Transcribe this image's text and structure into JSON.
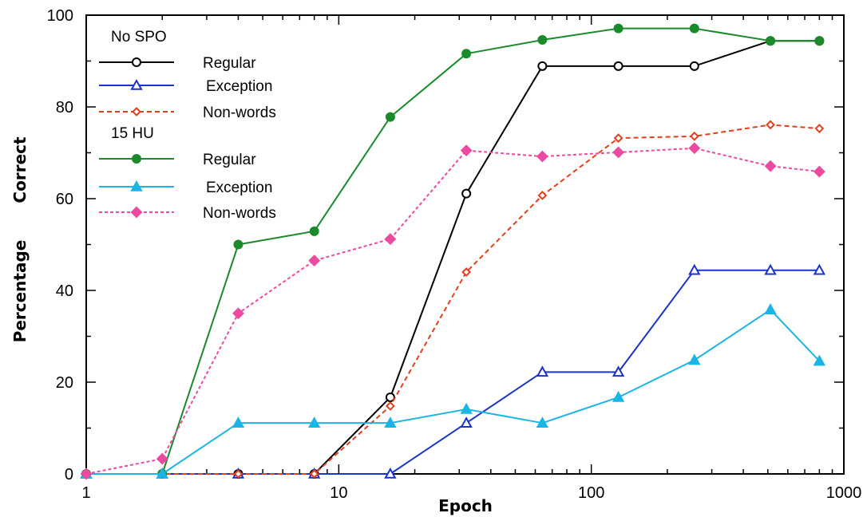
{
  "chart_data": {
    "type": "line",
    "xlabel": "Epoch",
    "ylabel_parts": [
      "Percentage",
      "Correct"
    ],
    "x_scale": "log",
    "xlim": [
      1,
      1000
    ],
    "ylim": [
      0,
      100
    ],
    "x_ticks": [
      1,
      10,
      100,
      1000
    ],
    "y_ticks": [
      0,
      20,
      40,
      60,
      80,
      100
    ],
    "legend": {
      "placement": "top-left",
      "groups": [
        "No SPO",
        "15 HU"
      ]
    },
    "x": [
      1,
      2,
      4,
      8,
      16,
      32,
      64,
      128,
      256,
      512,
      800
    ],
    "series": [
      {
        "group": "No SPO",
        "name": "Regular",
        "color": "#000000",
        "marker": "circle-open",
        "dash": "solid",
        "values": [
          0,
          0,
          0,
          0,
          16.7,
          61.1,
          88.9,
          88.9,
          88.9,
          94.4,
          94.4
        ]
      },
      {
        "group": "No SPO",
        "name": "Exception",
        "color": "#1a33c8",
        "marker": "triangle-open",
        "dash": "solid",
        "values": [
          0,
          0,
          0,
          0,
          0,
          11.1,
          22.2,
          22.2,
          44.4,
          44.4,
          44.4
        ]
      },
      {
        "group": "No SPO",
        "name": "Non-words",
        "color": "#e0401c",
        "marker": "diamond-open",
        "dash": "dashed",
        "values": [
          0,
          0,
          0,
          0,
          14.8,
          44,
          60.7,
          73.2,
          73.6,
          76.1,
          75.3
        ]
      },
      {
        "group": "15 HU",
        "name": "Regular",
        "color": "#1a8a2a",
        "marker": "circle-filled",
        "dash": "solid",
        "values": [
          0,
          0,
          50,
          52.9,
          77.8,
          91.6,
          94.6,
          97.1,
          97.1,
          94.4,
          94.4
        ]
      },
      {
        "group": "15 HU",
        "name": "Exception",
        "color": "#1ab4e6",
        "marker": "triangle-filled",
        "dash": "solid",
        "values": [
          0,
          0,
          11.1,
          11.1,
          11.1,
          14.1,
          11.1,
          16.7,
          24.8,
          35.8,
          24.6
        ]
      },
      {
        "group": "15 HU",
        "name": "Non-words",
        "color": "#ec4aa0",
        "marker": "diamond-filled",
        "dash": "dotted",
        "values": [
          0,
          3.3,
          35,
          46.5,
          51.2,
          70.5,
          69.2,
          70.1,
          71,
          67.1,
          65.9
        ]
      }
    ]
  }
}
